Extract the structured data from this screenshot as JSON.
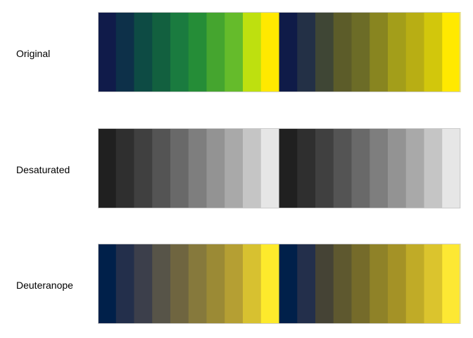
{
  "chart_data": {
    "type": "heatmap",
    "rows": [
      {
        "label": "Original",
        "palettes": [
          [
            "#101b4a",
            "#0d3049",
            "#0d4b44",
            "#12603f",
            "#1a7b3f",
            "#258d37",
            "#45a52f",
            "#65bb2b",
            "#bee00f",
            "#ffe900"
          ],
          [
            "#0f1b48",
            "#233046",
            "#3f4635",
            "#5c5c29",
            "#6c6c27",
            "#888520",
            "#a39e1a",
            "#b8ae14",
            "#d2c70c",
            "#ffe900"
          ]
        ]
      },
      {
        "label": "Desaturated",
        "palettes": [
          [
            "#202020",
            "#2f2f2f",
            "#404040",
            "#545454",
            "#696969",
            "#7e7e7e",
            "#939393",
            "#a9a9a9",
            "#c5c5c5",
            "#e6e6e6"
          ],
          [
            "#202020",
            "#2f2f2f",
            "#404040",
            "#545454",
            "#696969",
            "#7e7e7e",
            "#939393",
            "#a9a9a9",
            "#c5c5c5",
            "#e6e6e6"
          ]
        ]
      },
      {
        "label": "Deuteranope",
        "palettes": [
          [
            "#00204a",
            "#232f4b",
            "#3c3f4b",
            "#575448",
            "#6f6540",
            "#86793c",
            "#9b8a35",
            "#b59f33",
            "#d7c130",
            "#fdea2c"
          ],
          [
            "#00204a",
            "#232f4b",
            "#454335",
            "#5e582f",
            "#756b2a",
            "#8f8228",
            "#a49226",
            "#c0ab27",
            "#dbc42d",
            "#fde833"
          ]
        ]
      }
    ],
    "legend": "none",
    "grid": false,
    "border_color": "#cccccc"
  }
}
